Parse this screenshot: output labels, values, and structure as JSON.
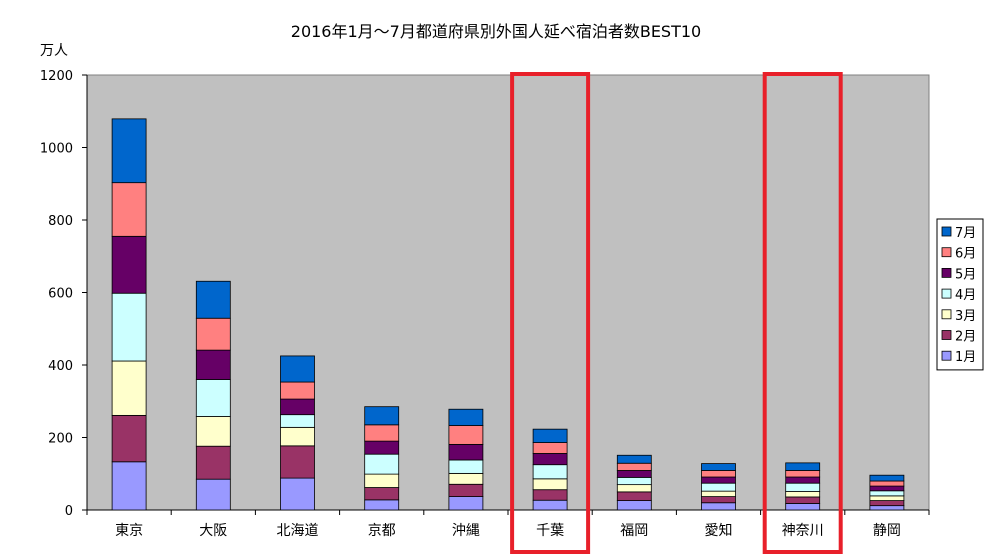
{
  "chart_data": {
    "type": "bar",
    "stacked": true,
    "title": "2016年1月～7月都道府県別外国人延べ宿泊者数BEST10",
    "ylabel": "万人",
    "xlabel": "",
    "ylim": [
      0,
      1200
    ],
    "yticks": [
      0,
      200,
      400,
      600,
      800,
      1000,
      1200
    ],
    "grid": false,
    "legend_position": "right",
    "categories": [
      "東京",
      "大阪",
      "北海道",
      "京都",
      "沖縄",
      "千葉",
      "福岡",
      "愛知",
      "神奈川",
      "静岡"
    ],
    "highlighted_categories": [
      "千葉",
      "神奈川"
    ],
    "highlight_color": "#e8202a",
    "plot_background": "#c0c0c0",
    "series": [
      {
        "name": "1月",
        "color": "#9999ff",
        "values": [
          133,
          85,
          88,
          28,
          37,
          27,
          26,
          20,
          18,
          12
        ]
      },
      {
        "name": "2月",
        "color": "#993366",
        "values": [
          128,
          91,
          89,
          34,
          34,
          29,
          24,
          17,
          18,
          14
        ]
      },
      {
        "name": "3月",
        "color": "#ffffcc",
        "values": [
          150,
          82,
          51,
          37,
          30,
          30,
          20,
          15,
          15,
          13
        ]
      },
      {
        "name": "4月",
        "color": "#ccffff",
        "values": [
          187,
          102,
          35,
          55,
          37,
          39,
          20,
          22,
          23,
          14
        ]
      },
      {
        "name": "5月",
        "color": "#660066",
        "values": [
          157,
          81,
          43,
          36,
          43,
          31,
          19,
          17,
          17,
          13
        ]
      },
      {
        "name": "6月",
        "color": "#ff8080",
        "values": [
          148,
          88,
          47,
          45,
          52,
          30,
          20,
          18,
          18,
          14
        ]
      },
      {
        "name": "7月",
        "color": "#0066cc",
        "values": [
          176,
          102,
          72,
          50,
          45,
          37,
          22,
          19,
          21,
          16
        ]
      }
    ]
  }
}
